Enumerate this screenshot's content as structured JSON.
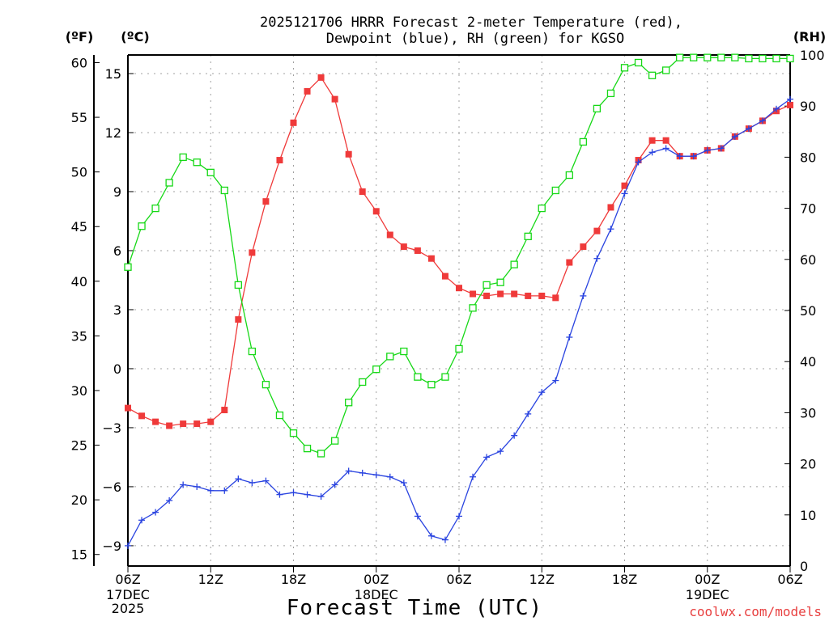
{
  "chart_data": {
    "type": "line",
    "title_line1": "2025121706 HRRR Forecast 2-meter Temperature (red),",
    "title_line2": "Dewpoint (blue), RH (green) for KGSO",
    "xlabel": "Forecast Time (UTC)",
    "credit": "coolwx.com/models",
    "unit_left_f": "(ºF)",
    "unit_left_c": "(ºC)",
    "unit_right": "(RH)",
    "x_hours": [
      0,
      1,
      2,
      3,
      4,
      5,
      6,
      7,
      8,
      9,
      10,
      11,
      12,
      13,
      14,
      15,
      16,
      17,
      18,
      19,
      20,
      21,
      22,
      23,
      24,
      25,
      26,
      27,
      28,
      29,
      30,
      31,
      32,
      33,
      34,
      35,
      36,
      37,
      38,
      39,
      40,
      41,
      42,
      43,
      44,
      45,
      46,
      47,
      48
    ],
    "x_range": [
      0,
      48
    ],
    "x_ticks": [
      {
        "h": 0,
        "label": "06Z",
        "sub1": "17DEC",
        "sub2": "2025"
      },
      {
        "h": 6,
        "label": "12Z",
        "sub1": "",
        "sub2": ""
      },
      {
        "h": 12,
        "label": "18Z",
        "sub1": "",
        "sub2": ""
      },
      {
        "h": 18,
        "label": "00Z",
        "sub1": "18DEC",
        "sub2": ""
      },
      {
        "h": 24,
        "label": "06Z",
        "sub1": "",
        "sub2": ""
      },
      {
        "h": 30,
        "label": "12Z",
        "sub1": "",
        "sub2": ""
      },
      {
        "h": 36,
        "label": "18Z",
        "sub1": "",
        "sub2": ""
      },
      {
        "h": 42,
        "label": "00Z",
        "sub1": "19DEC",
        "sub2": ""
      },
      {
        "h": 48,
        "label": "06Z",
        "sub1": "",
        "sub2": ""
      }
    ],
    "ylim_c": [
      -10,
      16
    ],
    "yticks_c": [
      -9,
      -6,
      -3,
      0,
      3,
      6,
      9,
      12,
      15
    ],
    "yticks_f": [
      15,
      20,
      25,
      30,
      35,
      40,
      45,
      50,
      55,
      60
    ],
    "ylim_rh": [
      0,
      100
    ],
    "yticks_rh": [
      0,
      10,
      20,
      30,
      40,
      50,
      60,
      70,
      80,
      90,
      100
    ],
    "series": [
      {
        "name": "Temperature",
        "axis": "c",
        "color": "#ef3a3a",
        "marker": "filled-square",
        "values": [
          -2.0,
          -2.4,
          -2.7,
          -2.9,
          -2.8,
          -2.8,
          -2.7,
          -2.1,
          2.5,
          5.9,
          8.5,
          10.6,
          12.5,
          14.1,
          14.8,
          13.7,
          10.9,
          9.0,
          8.0,
          6.8,
          6.2,
          6.0,
          5.6,
          4.7,
          4.1,
          3.8,
          3.7,
          3.8,
          3.8,
          3.7,
          3.7,
          3.6,
          5.4,
          6.2,
          7.0,
          8.2,
          9.3,
          10.6,
          11.6,
          11.6,
          10.8,
          10.8,
          11.1,
          11.2,
          11.8,
          12.2,
          12.6,
          13.1,
          13.4
        ]
      },
      {
        "name": "Dewpoint",
        "axis": "c",
        "color": "#2a44e0",
        "marker": "plus",
        "values": [
          -9.0,
          -7.7,
          -7.3,
          -6.7,
          -5.9,
          -6.0,
          -6.2,
          -6.2,
          -5.6,
          -5.8,
          -5.7,
          -6.4,
          -6.3,
          -6.4,
          -6.5,
          -5.9,
          -5.2,
          -5.3,
          -5.4,
          -5.5,
          -5.8,
          -7.5,
          -8.5,
          -8.7,
          -7.5,
          -5.5,
          -4.5,
          -4.2,
          -3.4,
          -2.3,
          -1.2,
          -0.6,
          1.6,
          3.7,
          5.6,
          7.1,
          8.9,
          10.5,
          11.0,
          11.2,
          10.8,
          10.8,
          11.1,
          11.2,
          11.8,
          12.2,
          12.6,
          13.2,
          13.7
        ]
      },
      {
        "name": "Relative Humidity",
        "axis": "rh",
        "color": "#16d816",
        "marker": "open-square",
        "values": [
          58.5,
          66.5,
          70.0,
          75.0,
          80.0,
          79.0,
          77.0,
          73.5,
          55.0,
          42.0,
          35.5,
          29.5,
          26.0,
          23.0,
          22.0,
          24.5,
          32.0,
          36.0,
          38.5,
          41.0,
          42.0,
          37.0,
          35.5,
          37.0,
          42.5,
          50.5,
          55.0,
          55.5,
          59.0,
          64.5,
          70.0,
          73.5,
          76.5,
          83.0,
          89.5,
          92.5,
          97.5,
          98.5,
          96.0,
          97.0,
          99.5,
          99.5,
          99.5,
          99.5,
          99.5,
          99.3,
          99.3,
          99.3,
          99.3
        ]
      }
    ]
  }
}
